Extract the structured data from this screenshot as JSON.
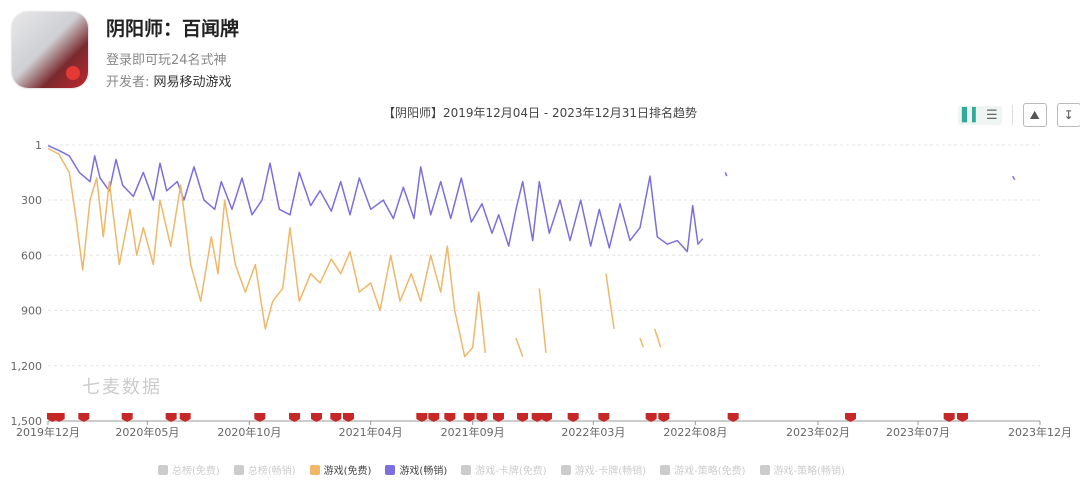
{
  "app": {
    "name": "阴阳师：百闻牌",
    "subtitle": "登录即可玩24名式神",
    "developer_label": "开发者:",
    "developer": "网易移动游戏"
  },
  "toolbar": {
    "bar_icon": "bar-chart-icon",
    "list_icon": "list-icon",
    "image_icon": "image-save-icon",
    "download_icon": "download-icon"
  },
  "watermark": "七麦数据",
  "chart_data": {
    "type": "line",
    "title": "【阴阳师】2019年12月04日 - 2023年12月31日排名趋势",
    "x_range": [
      "2019-12-04",
      "2023-12-31"
    ],
    "ylim": [
      1,
      1500
    ],
    "y_inverted": true,
    "y_ticks": [
      "1",
      "300",
      "600",
      "900",
      "1,200",
      "1,500"
    ],
    "y_tick_values": [
      1,
      300,
      600,
      900,
      1200,
      1500
    ],
    "x_ticks": [
      {
        "label": "2019年12月",
        "date": "2019-12-04"
      },
      {
        "label": "2020年05月",
        "date": "2020-05-01"
      },
      {
        "label": "2020年10月",
        "date": "2020-10-01"
      },
      {
        "label": "2021年04月",
        "date": "2021-04-01"
      },
      {
        "label": "2021年09月",
        "date": "2021-09-01"
      },
      {
        "label": "2022年03月",
        "date": "2022-03-01"
      },
      {
        "label": "2022年08月",
        "date": "2022-08-01"
      },
      {
        "label": "2023年02月",
        "date": "2023-02-01"
      },
      {
        "label": "2023年07月",
        "date": "2023-07-01"
      },
      {
        "label": "2023年12月",
        "date": "2023-12-31"
      }
    ],
    "grid": true,
    "legend_position": "bottom",
    "legend": [
      {
        "name": "总榜(免费)",
        "active": false
      },
      {
        "name": "总榜(畅销)",
        "active": false
      },
      {
        "name": "游戏(免费)",
        "active": true
      },
      {
        "name": "游戏(畅销)",
        "active": true
      },
      {
        "name": "游戏-卡牌(免费)",
        "active": false
      },
      {
        "name": "游戏-卡牌(畅销)",
        "active": false
      },
      {
        "name": "游戏-策略(免费)",
        "active": false
      },
      {
        "name": "游戏-策略(畅销)",
        "active": false
      }
    ],
    "series": [
      {
        "name": "游戏(畅销)",
        "color": "#7b6fe0",
        "points": [
          [
            "2019-12-04",
            5
          ],
          [
            "2019-12-20",
            30
          ],
          [
            "2020-01-05",
            60
          ],
          [
            "2020-01-20",
            150
          ],
          [
            "2020-02-05",
            200
          ],
          [
            "2020-02-12",
            60
          ],
          [
            "2020-02-20",
            180
          ],
          [
            "2020-03-05",
            250
          ],
          [
            "2020-03-15",
            80
          ],
          [
            "2020-03-25",
            220
          ],
          [
            "2020-04-10",
            280
          ],
          [
            "2020-04-25",
            150
          ],
          [
            "2020-05-10",
            300
          ],
          [
            "2020-05-20",
            100
          ],
          [
            "2020-05-30",
            250
          ],
          [
            "2020-06-15",
            200
          ],
          [
            "2020-06-25",
            300
          ],
          [
            "2020-07-10",
            120
          ],
          [
            "2020-07-25",
            300
          ],
          [
            "2020-08-10",
            350
          ],
          [
            "2020-08-20",
            200
          ],
          [
            "2020-09-05",
            350
          ],
          [
            "2020-09-20",
            180
          ],
          [
            "2020-10-05",
            380
          ],
          [
            "2020-10-20",
            300
          ],
          [
            "2020-11-01",
            100
          ],
          [
            "2020-11-15",
            350
          ],
          [
            "2020-12-01",
            380
          ],
          [
            "2020-12-15",
            150
          ],
          [
            "2021-01-01",
            330
          ],
          [
            "2021-01-15",
            250
          ],
          [
            "2021-02-01",
            360
          ],
          [
            "2021-02-15",
            200
          ],
          [
            "2021-03-01",
            380
          ],
          [
            "2021-03-15",
            180
          ],
          [
            "2021-04-01",
            350
          ],
          [
            "2021-04-20",
            300
          ],
          [
            "2021-05-05",
            400
          ],
          [
            "2021-05-20",
            230
          ],
          [
            "2021-06-05",
            400
          ],
          [
            "2021-06-15",
            120
          ],
          [
            "2021-06-30",
            380
          ],
          [
            "2021-07-15",
            200
          ],
          [
            "2021-07-30",
            400
          ],
          [
            "2021-08-15",
            180
          ],
          [
            "2021-08-30",
            420
          ],
          [
            "2021-09-15",
            320
          ],
          [
            "2021-09-30",
            480
          ],
          [
            "2021-10-10",
            380
          ],
          [
            "2021-10-25",
            550
          ],
          [
            "2021-11-05",
            350
          ],
          [
            "2021-11-15",
            200
          ],
          [
            "2021-11-30",
            520
          ],
          [
            "2021-12-10",
            200
          ],
          [
            "2021-12-25",
            480
          ],
          [
            "2022-01-10",
            300
          ],
          [
            "2022-01-25",
            520
          ],
          [
            "2022-02-10",
            300
          ],
          [
            "2022-02-25",
            550
          ],
          [
            "2022-03-10",
            350
          ],
          [
            "2022-03-25",
            560
          ],
          [
            "2022-04-10",
            320
          ],
          [
            "2022-04-25",
            520
          ],
          [
            "2022-05-10",
            450
          ],
          [
            "2022-05-25",
            170
          ],
          [
            "2022-06-05",
            500
          ],
          [
            "2022-06-20",
            540
          ],
          [
            "2022-07-05",
            520
          ],
          [
            "2022-07-20",
            580
          ],
          [
            "2022-07-28",
            330
          ],
          [
            "2022-08-05",
            540
          ],
          [
            "2022-08-12",
            510
          ],
          null,
          [
            "2022-09-15",
            150
          ],
          [
            "2022-09-17",
            170
          ],
          null,
          [
            "2023-11-20",
            170
          ],
          [
            "2023-11-23",
            190
          ]
        ]
      },
      {
        "name": "游戏(免费)",
        "color": "#f0b769",
        "points": [
          [
            "2019-12-04",
            20
          ],
          [
            "2019-12-20",
            50
          ],
          [
            "2020-01-05",
            150
          ],
          [
            "2020-01-15",
            400
          ],
          [
            "2020-01-25",
            680
          ],
          [
            "2020-02-05",
            300
          ],
          [
            "2020-02-15",
            180
          ],
          [
            "2020-02-25",
            500
          ],
          [
            "2020-03-05",
            200
          ],
          [
            "2020-03-20",
            650
          ],
          [
            "2020-04-05",
            350
          ],
          [
            "2020-04-15",
            600
          ],
          [
            "2020-04-25",
            450
          ],
          [
            "2020-05-10",
            650
          ],
          [
            "2020-05-20",
            300
          ],
          [
            "2020-06-05",
            550
          ],
          [
            "2020-06-20",
            220
          ],
          [
            "2020-07-05",
            650
          ],
          [
            "2020-07-20",
            850
          ],
          [
            "2020-08-05",
            500
          ],
          [
            "2020-08-15",
            700
          ],
          [
            "2020-08-25",
            300
          ],
          [
            "2020-09-10",
            650
          ],
          [
            "2020-09-25",
            800
          ],
          [
            "2020-10-10",
            650
          ],
          [
            "2020-10-25",
            1000
          ],
          [
            "2020-11-05",
            850
          ],
          [
            "2020-11-20",
            780
          ],
          [
            "2020-12-01",
            450
          ],
          [
            "2020-12-15",
            850
          ],
          [
            "2021-01-01",
            700
          ],
          [
            "2021-01-15",
            750
          ],
          [
            "2021-02-01",
            620
          ],
          [
            "2021-02-15",
            700
          ],
          [
            "2021-03-01",
            580
          ],
          [
            "2021-03-15",
            800
          ],
          [
            "2021-04-01",
            750
          ],
          [
            "2021-04-15",
            900
          ],
          [
            "2021-05-01",
            600
          ],
          [
            "2021-05-15",
            850
          ],
          [
            "2021-06-01",
            700
          ],
          [
            "2021-06-15",
            850
          ],
          [
            "2021-06-30",
            600
          ],
          [
            "2021-07-15",
            800
          ],
          [
            "2021-07-25",
            550
          ],
          [
            "2021-08-05",
            900
          ],
          [
            "2021-08-20",
            1150
          ],
          [
            "2021-09-01",
            1100
          ],
          [
            "2021-09-10",
            800
          ],
          [
            "2021-09-20",
            1130
          ],
          null,
          [
            "2021-11-05",
            1050
          ],
          [
            "2021-11-15",
            1150
          ],
          null,
          [
            "2021-12-10",
            780
          ],
          [
            "2021-12-20",
            1130
          ],
          null,
          [
            "2022-03-20",
            700
          ],
          [
            "2022-04-01",
            1000
          ],
          null,
          [
            "2022-05-10",
            1050
          ],
          [
            "2022-05-15",
            1100
          ],
          null,
          [
            "2022-06-01",
            1000
          ],
          [
            "2022-06-10",
            1100
          ]
        ]
      }
    ],
    "event_markers": [
      "2019-12-04",
      "2019-12-14",
      "2020-01-20",
      "2020-03-25",
      "2020-05-30",
      "2020-06-20",
      "2020-10-10",
      "2020-12-01",
      "2021-01-03",
      "2021-02-01",
      "2021-02-20",
      "2021-06-10",
      "2021-06-28",
      "2021-07-22",
      "2021-08-20",
      "2021-09-08",
      "2021-10-03",
      "2021-11-08",
      "2021-11-30",
      "2021-12-14",
      "2022-01-23",
      "2022-03-10",
      "2022-05-20",
      "2022-06-08",
      "2022-09-20",
      "2023-03-15",
      "2023-08-10",
      "2023-08-30"
    ],
    "marker_color": "#c62828"
  }
}
